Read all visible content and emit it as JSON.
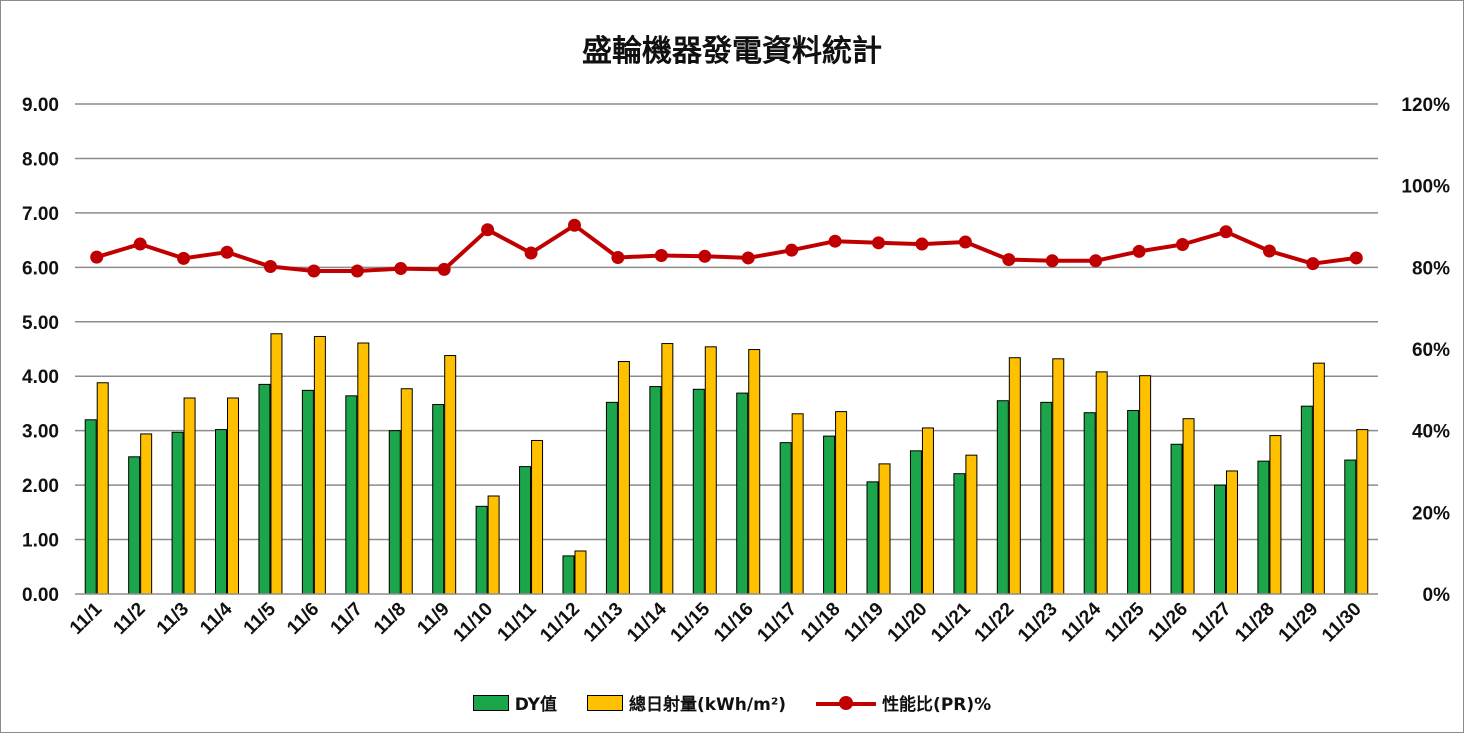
{
  "chart_data": {
    "type": "bar",
    "title": "盛輪機器發電資料統計",
    "categories": [
      "11/1",
      "11/2",
      "11/3",
      "11/4",
      "11/5",
      "11/6",
      "11/7",
      "11/8",
      "11/9",
      "11/10",
      "11/11",
      "11/12",
      "11/13",
      "11/14",
      "11/15",
      "11/16",
      "11/17",
      "11/18",
      "11/19",
      "11/20",
      "11/21",
      "11/22",
      "11/23",
      "11/24",
      "11/25",
      "11/26",
      "11/27",
      "11/28",
      "11/29",
      "11/30"
    ],
    "ylim": [
      0,
      9
    ],
    "y_ticks": [
      "0.00",
      "1.00",
      "2.00",
      "3.00",
      "4.00",
      "5.00",
      "6.00",
      "7.00",
      "8.00",
      "9.00"
    ],
    "y2lim": [
      0,
      120
    ],
    "y2_ticks": [
      "0%",
      "20%",
      "40%",
      "60%",
      "80%",
      "100%",
      "120%"
    ],
    "grid": true,
    "legend_position": "bottom",
    "series": [
      {
        "name": "DY值",
        "type": "bar",
        "axis": "left",
        "color": "#1ca64b",
        "values": [
          3.2,
          2.52,
          2.97,
          3.02,
          3.85,
          3.74,
          3.64,
          3.0,
          3.48,
          1.61,
          2.34,
          0.7,
          3.52,
          3.81,
          3.76,
          3.69,
          2.78,
          2.9,
          2.06,
          2.63,
          2.21,
          3.55,
          3.52,
          3.33,
          3.37,
          2.75,
          2.0,
          2.44,
          3.45,
          2.46
        ]
      },
      {
        "name": "總日射量(kWh/m²)",
        "type": "bar",
        "axis": "left",
        "color": "#ffc000",
        "values": [
          3.88,
          2.94,
          3.6,
          3.6,
          4.78,
          4.73,
          4.61,
          3.77,
          4.38,
          1.8,
          2.82,
          0.79,
          4.27,
          4.6,
          4.54,
          4.49,
          3.31,
          3.35,
          2.39,
          3.05,
          2.55,
          4.34,
          4.32,
          4.08,
          4.01,
          3.22,
          2.26,
          2.91,
          4.24,
          3.02
        ]
      },
      {
        "name": "性能比(PR)%",
        "type": "line",
        "axis": "right",
        "color": "#c00000",
        "values": [
          82.5,
          85.7,
          82.2,
          83.7,
          80.2,
          79.1,
          79.1,
          79.7,
          79.5,
          89.2,
          83.5,
          90.3,
          82.4,
          82.9,
          82.7,
          82.3,
          84.2,
          86.4,
          86.0,
          85.7,
          86.2,
          81.9,
          81.6,
          81.6,
          83.9,
          85.6,
          88.7,
          84.0,
          80.9,
          82.3
        ]
      }
    ]
  }
}
